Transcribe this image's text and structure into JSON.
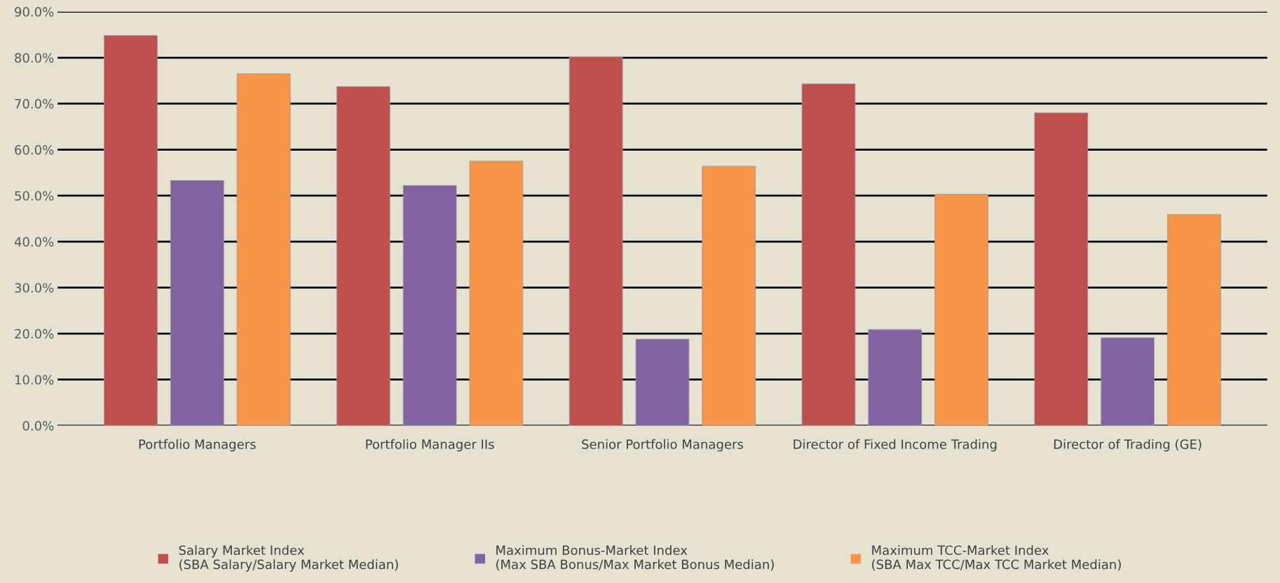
{
  "chart_data": {
    "type": "bar",
    "categories": [
      "Portfolio Managers",
      "Portfolio Manager IIs",
      "Senior Portfolio Managers",
      "Director of Fixed Income Trading",
      "Director of Trading (GE)"
    ],
    "series": [
      {
        "name": "Salary Market Index\n(SBA Salary/Salary Market Median)",
        "color": "#c0504d",
        "values": [
          84.8,
          73.7,
          80.2,
          74.3,
          68.0
        ]
      },
      {
        "name": "Maximum Bonus-Market Index\n(Max SBA Bonus/Max Market Bonus Median)",
        "color": "#8064a2",
        "values": [
          53.3,
          52.2,
          18.8,
          20.9,
          19.1
        ]
      },
      {
        "name": "Maximum TCC-Market Index\n(SBA Max TCC/Max TCC Market Median)",
        "color": "#f79646",
        "values": [
          76.5,
          57.5,
          56.4,
          50.3,
          45.9
        ]
      }
    ],
    "ylim": [
      0,
      90
    ],
    "yticks": [
      {
        "value": 0,
        "label": "0.0%"
      },
      {
        "value": 10,
        "label": "10.0%"
      },
      {
        "value": 20,
        "label": "20.0%"
      },
      {
        "value": 30,
        "label": "30.0%"
      },
      {
        "value": 40,
        "label": "40.0%"
      },
      {
        "value": 50,
        "label": "50.0%"
      },
      {
        "value": 60,
        "label": "60.0%"
      },
      {
        "value": 70,
        "label": "70.0%"
      },
      {
        "value": 80,
        "label": "80.0%"
      },
      {
        "value": 90,
        "label": "90.0%"
      }
    ],
    "grid": "y",
    "legend": "bottom"
  }
}
